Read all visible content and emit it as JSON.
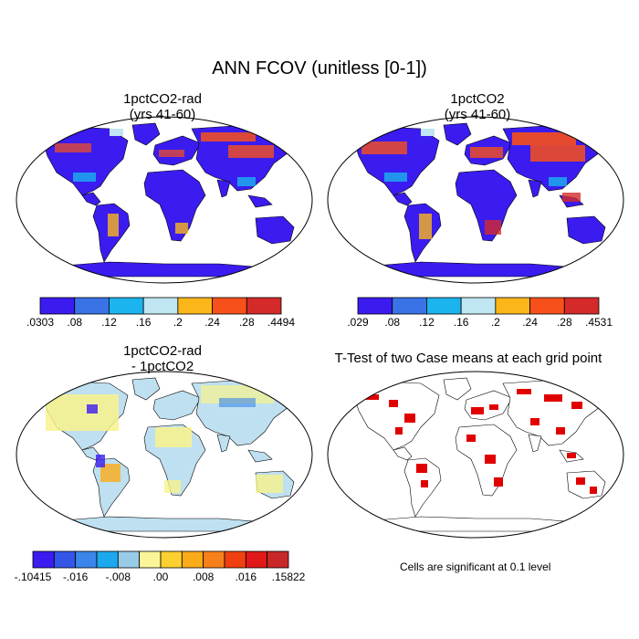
{
  "title": "ANN FCOV (unitless [0-1])",
  "panels": [
    {
      "id": "p1",
      "title_line1": "1pctCO2-rad",
      "title_line2": "(yrs 41-60)"
    },
    {
      "id": "p2",
      "title_line1": "1pctCO2",
      "title_line2": "(yrs 41-60)"
    },
    {
      "id": "p3",
      "title_line1": "1pctCO2-rad",
      "title_line2": "- 1pctCO2"
    },
    {
      "id": "p4",
      "title_line1": "T-Test of two Case means at each grid point",
      "title_line2": ""
    }
  ],
  "colorbars": [
    {
      "id": "cb1",
      "colors": [
        "#3a1cf0",
        "#3a73e6",
        "#1cb4ee",
        "#bfe6f2",
        "#fbb61a",
        "#f8501a",
        "#d42a2a"
      ],
      "labels": [
        ".0303",
        ".08",
        ".12",
        ".16",
        ".2",
        ".24",
        ".28",
        ".4494"
      ]
    },
    {
      "id": "cb2",
      "colors": [
        "#3a1cf0",
        "#3a73e6",
        "#1cb4ee",
        "#bfe6f2",
        "#fbb61a",
        "#f8501a",
        "#d42a2a"
      ],
      "labels": [
        ".029",
        ".08",
        ".12",
        ".16",
        ".2",
        ".24",
        ".28",
        ".4531"
      ]
    },
    {
      "id": "cb3",
      "colors": [
        "#3a1cf0",
        "#3355e8",
        "#3a86ea",
        "#1ca8ee",
        "#98cbe6",
        "#fbf59a",
        "#fbd030",
        "#fbab18",
        "#f8801a",
        "#f04010",
        "#e01818",
        "#c82828"
      ],
      "labels": [
        "-.10415",
        "-.016",
        "-.008",
        ".00",
        ".008",
        ".016",
        ".15822"
      ]
    }
  ],
  "significance_note": "Cells are significant at 0.1 level",
  "colors": {
    "ttest": "#e00000",
    "diff_background": "#bfe0f0",
    "diff_positive": "#f8f28c",
    "fcov_low": "#3a1cf0",
    "fcov_high": "#f8501a"
  }
}
